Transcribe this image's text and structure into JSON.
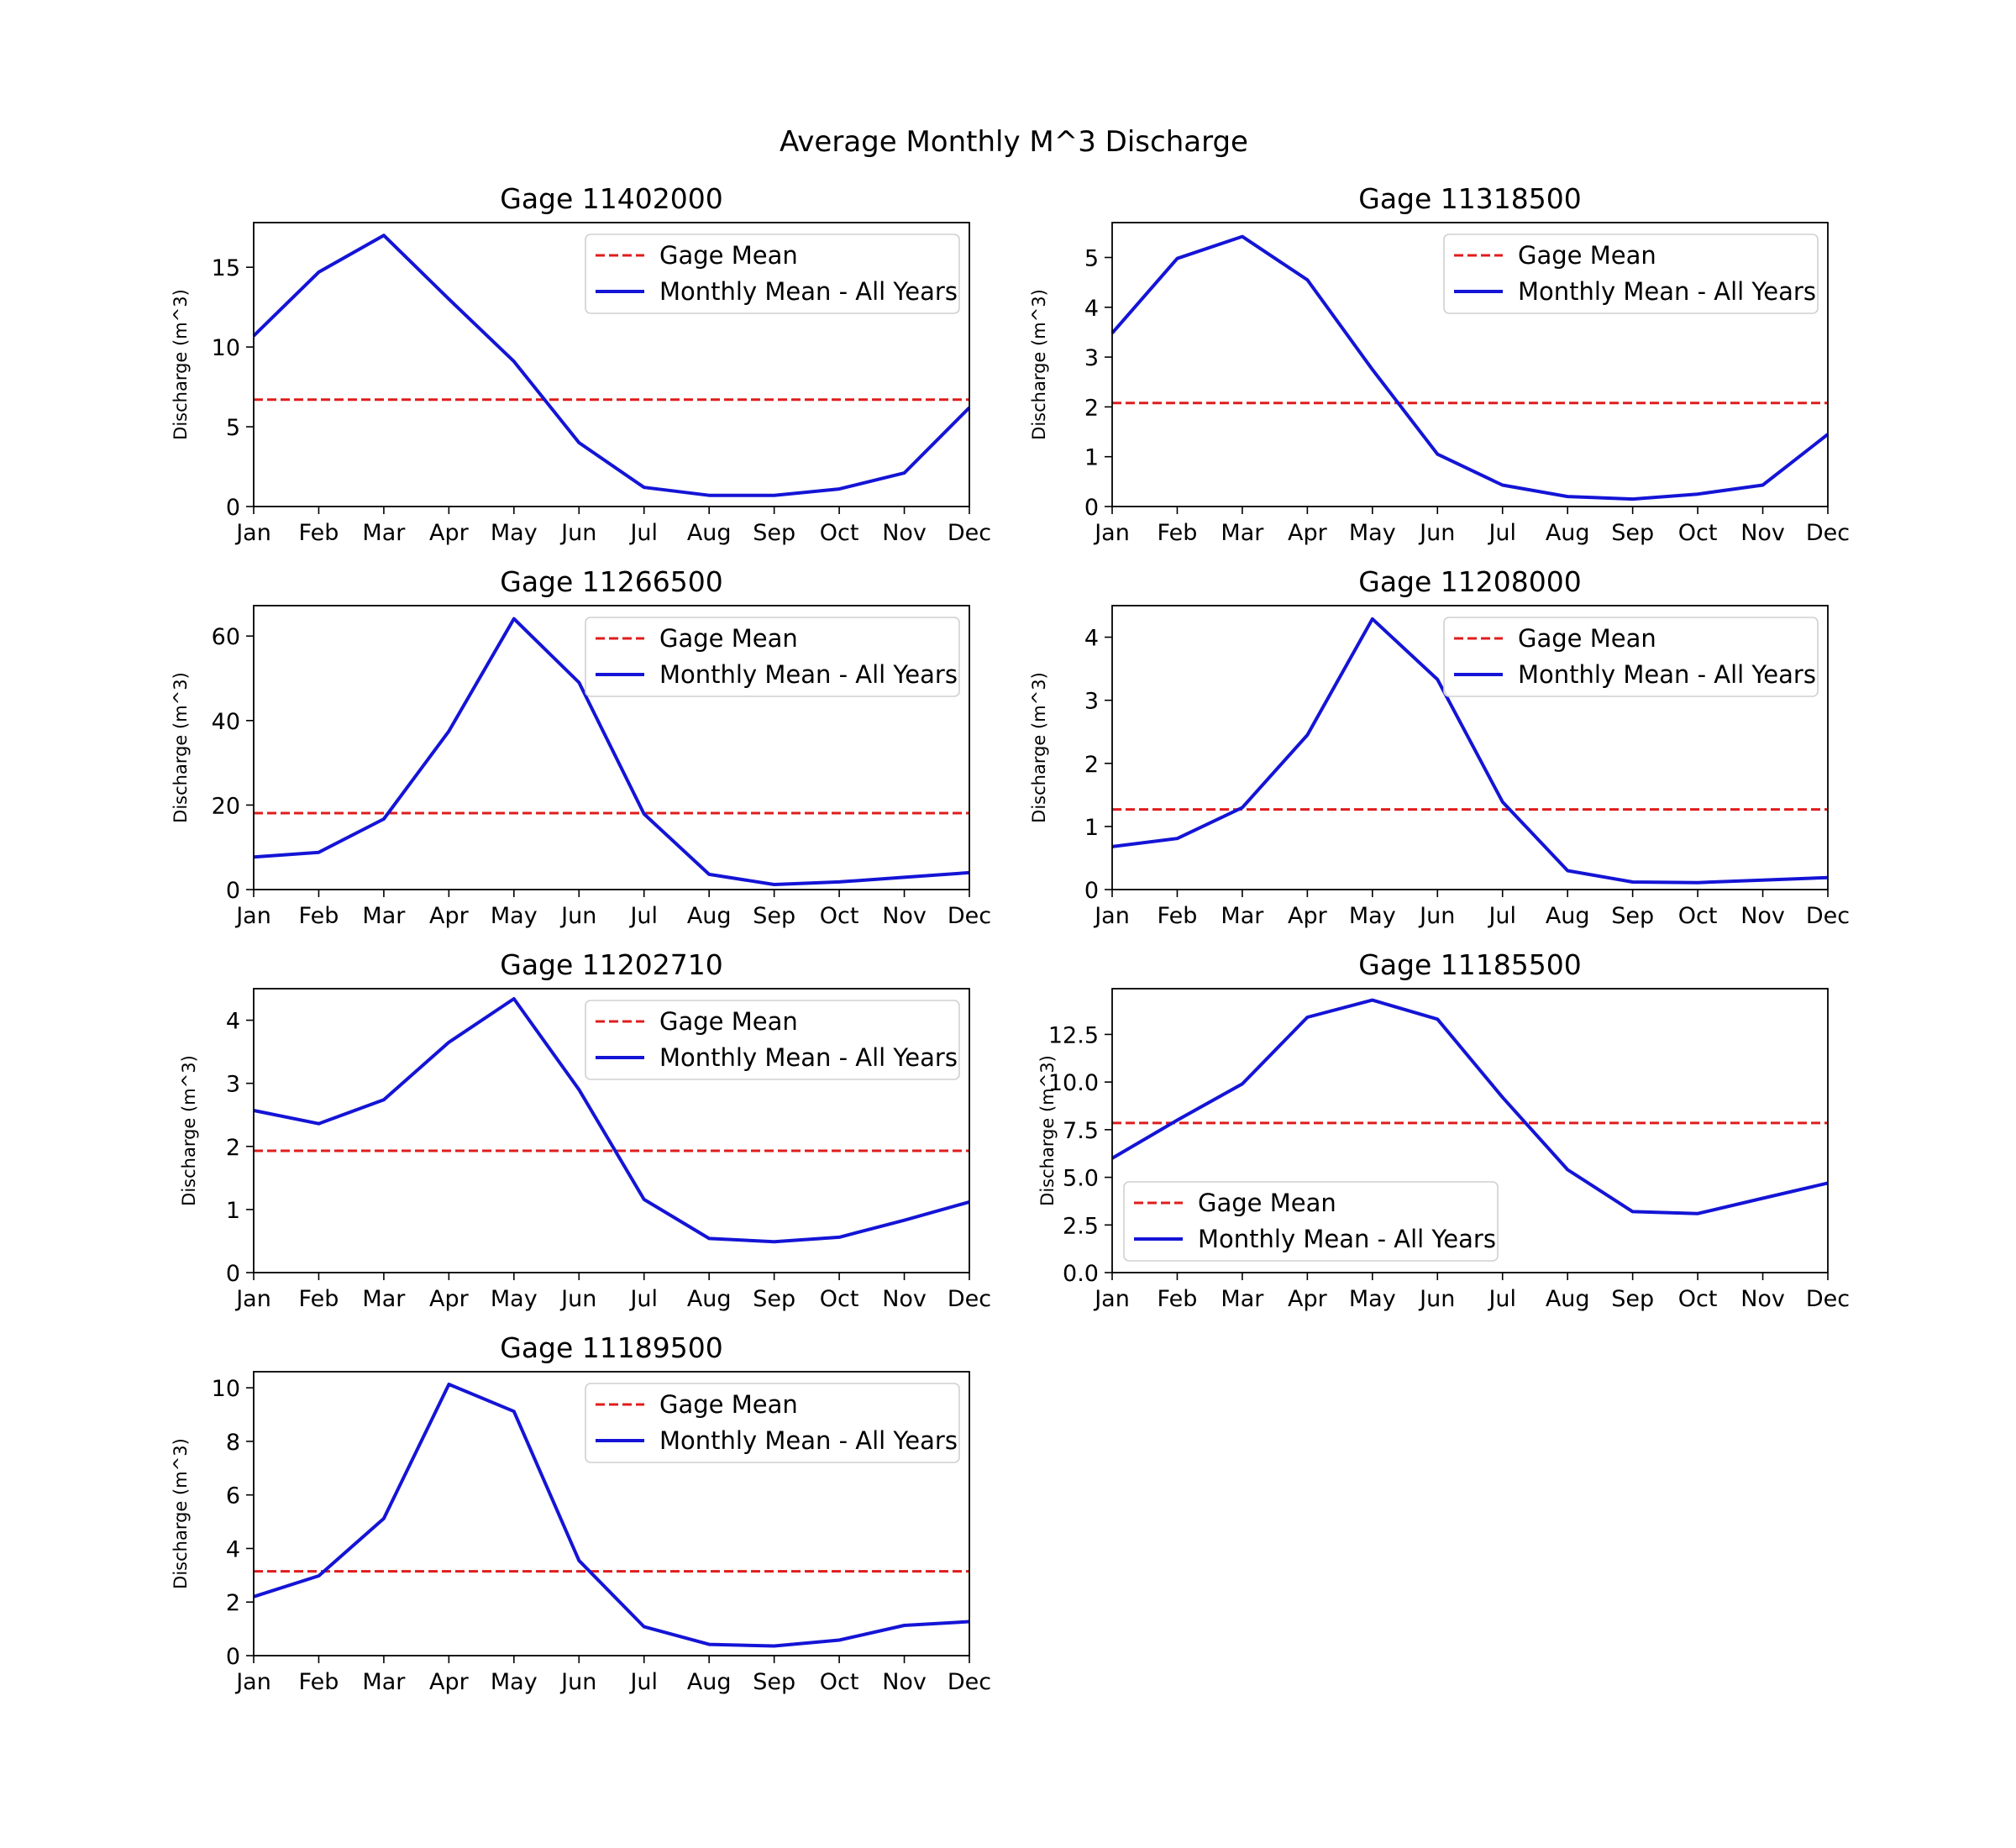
{
  "figure": {
    "title": "Average Monthly M^3 Discharge"
  },
  "chart_data": [
    {
      "type": "line",
      "title": "Gage 11402000",
      "xlabel": "",
      "ylabel": "Discharge (m^3)",
      "categories": [
        "Jan",
        "Feb",
        "Mar",
        "Apr",
        "May",
        "Jun",
        "Jul",
        "Aug",
        "Sep",
        "Oct",
        "Nov",
        "Dec"
      ],
      "ylim": [
        0,
        17.8
      ],
      "yticks": [
        0,
        5,
        10,
        15
      ],
      "ytick_labels": [
        "0",
        "5",
        "10",
        "15"
      ],
      "legend_position": "upper right",
      "series": [
        {
          "name": "Gage Mean",
          "style": "dashed",
          "color": "#e01c1c",
          "values": [
            6.7,
            6.7,
            6.7,
            6.7,
            6.7,
            6.7,
            6.7,
            6.7,
            6.7,
            6.7,
            6.7,
            6.7
          ]
        },
        {
          "name": "Monthly Mean - All Years",
          "style": "solid",
          "color": "#1414d6",
          "values": [
            10.7,
            14.7,
            17.0,
            13.0,
            9.1,
            4.0,
            1.2,
            0.7,
            0.7,
            1.1,
            2.1,
            6.2
          ]
        }
      ]
    },
    {
      "type": "line",
      "title": "Gage 11318500",
      "xlabel": "",
      "ylabel": "Discharge (m^3)",
      "categories": [
        "Jan",
        "Feb",
        "Mar",
        "Apr",
        "May",
        "Jun",
        "Jul",
        "Aug",
        "Sep",
        "Oct",
        "Nov",
        "Dec"
      ],
      "ylim": [
        0,
        5.7
      ],
      "yticks": [
        0,
        1,
        2,
        3,
        4,
        5
      ],
      "ytick_labels": [
        "0",
        "1",
        "2",
        "3",
        "4",
        "5"
      ],
      "legend_position": "upper right",
      "series": [
        {
          "name": "Gage Mean",
          "style": "dashed",
          "color": "#e01c1c",
          "values": [
            2.08,
            2.08,
            2.08,
            2.08,
            2.08,
            2.08,
            2.08,
            2.08,
            2.08,
            2.08,
            2.08,
            2.08
          ]
        },
        {
          "name": "Monthly Mean - All Years",
          "style": "solid",
          "color": "#1414d6",
          "values": [
            3.48,
            4.98,
            5.42,
            4.55,
            2.75,
            1.05,
            0.43,
            0.2,
            0.15,
            0.25,
            0.43,
            1.45
          ]
        }
      ]
    },
    {
      "type": "line",
      "title": "Gage 11266500",
      "xlabel": "",
      "ylabel": "Discharge (m^3)",
      "categories": [
        "Jan",
        "Feb",
        "Mar",
        "Apr",
        "May",
        "Jun",
        "Jul",
        "Aug",
        "Sep",
        "Oct",
        "Nov",
        "Dec"
      ],
      "ylim": [
        0,
        67.2
      ],
      "yticks": [
        0,
        20,
        40,
        60
      ],
      "ytick_labels": [
        "0",
        "20",
        "40",
        "60"
      ],
      "legend_position": "upper right",
      "series": [
        {
          "name": "Gage Mean",
          "style": "dashed",
          "color": "#e01c1c",
          "values": [
            18.1,
            18.1,
            18.1,
            18.1,
            18.1,
            18.1,
            18.1,
            18.1,
            18.1,
            18.1,
            18.1,
            18.1
          ]
        },
        {
          "name": "Monthly Mean - All Years",
          "style": "solid",
          "color": "#1414d6",
          "values": [
            7.7,
            8.8,
            16.7,
            37.5,
            64.1,
            49.0,
            17.9,
            3.6,
            1.2,
            1.8,
            2.9,
            4.0
          ]
        }
      ]
    },
    {
      "type": "line",
      "title": "Gage 11208000",
      "xlabel": "",
      "ylabel": "Discharge (m^3)",
      "categories": [
        "Jan",
        "Feb",
        "Mar",
        "Apr",
        "May",
        "Jun",
        "Jul",
        "Aug",
        "Sep",
        "Oct",
        "Nov",
        "Dec"
      ],
      "ylim": [
        0,
        4.5
      ],
      "yticks": [
        0,
        1,
        2,
        3,
        4
      ],
      "ytick_labels": [
        "0",
        "1",
        "2",
        "3",
        "4"
      ],
      "legend_position": "upper right",
      "series": [
        {
          "name": "Gage Mean",
          "style": "dashed",
          "color": "#e01c1c",
          "values": [
            1.27,
            1.27,
            1.27,
            1.27,
            1.27,
            1.27,
            1.27,
            1.27,
            1.27,
            1.27,
            1.27,
            1.27
          ]
        },
        {
          "name": "Monthly Mean - All Years",
          "style": "solid",
          "color": "#1414d6",
          "values": [
            0.68,
            0.81,
            1.3,
            2.45,
            4.29,
            3.33,
            1.39,
            0.3,
            0.12,
            0.11,
            0.15,
            0.19
          ]
        }
      ]
    },
    {
      "type": "line",
      "title": "Gage 11202710",
      "xlabel": "",
      "ylabel": "Discharge (m^3)",
      "categories": [
        "Jan",
        "Feb",
        "Mar",
        "Apr",
        "May",
        "Jun",
        "Jul",
        "Aug",
        "Sep",
        "Oct",
        "Nov",
        "Dec"
      ],
      "ylim": [
        0,
        4.5
      ],
      "yticks": [
        0,
        1,
        2,
        3,
        4
      ],
      "ytick_labels": [
        "0",
        "1",
        "2",
        "3",
        "4"
      ],
      "legend_position": "upper right",
      "series": [
        {
          "name": "Gage Mean",
          "style": "dashed",
          "color": "#e01c1c",
          "values": [
            1.93,
            1.93,
            1.93,
            1.93,
            1.93,
            1.93,
            1.93,
            1.93,
            1.93,
            1.93,
            1.93,
            1.93
          ]
        },
        {
          "name": "Monthly Mean - All Years",
          "style": "solid",
          "color": "#1414d6",
          "values": [
            2.57,
            2.36,
            2.74,
            3.65,
            4.34,
            2.9,
            1.16,
            0.54,
            0.49,
            0.56,
            0.83,
            1.12
          ]
        }
      ]
    },
    {
      "type": "line",
      "title": "Gage 11185500",
      "xlabel": "",
      "ylabel": "Discharge (m^3)",
      "categories": [
        "Jan",
        "Feb",
        "Mar",
        "Apr",
        "May",
        "Jun",
        "Jul",
        "Aug",
        "Sep",
        "Oct",
        "Nov",
        "Dec"
      ],
      "ylim": [
        0,
        14.9
      ],
      "yticks": [
        0,
        2.5,
        5,
        7.5,
        10,
        12.5
      ],
      "ytick_labels": [
        "0.0",
        "2.5",
        "5.0",
        "7.5",
        "10.0",
        "12.5"
      ],
      "legend_position": "lower left",
      "series": [
        {
          "name": "Gage Mean",
          "style": "dashed",
          "color": "#e01c1c",
          "values": [
            7.85,
            7.85,
            7.85,
            7.85,
            7.85,
            7.85,
            7.85,
            7.85,
            7.85,
            7.85,
            7.85,
            7.85
          ]
        },
        {
          "name": "Monthly Mean - All Years",
          "style": "solid",
          "color": "#1414d6",
          "values": [
            6.0,
            8.0,
            9.9,
            13.4,
            14.3,
            13.3,
            9.2,
            5.4,
            3.2,
            3.1,
            3.9,
            4.7
          ]
        }
      ]
    },
    {
      "type": "line",
      "title": "Gage 11189500",
      "xlabel": "",
      "ylabel": "Discharge (m^3)",
      "categories": [
        "Jan",
        "Feb",
        "Mar",
        "Apr",
        "May",
        "Jun",
        "Jul",
        "Aug",
        "Sep",
        "Oct",
        "Nov",
        "Dec"
      ],
      "ylim": [
        0,
        10.6
      ],
      "yticks": [
        0,
        2,
        4,
        6,
        8,
        10
      ],
      "ytick_labels": [
        "0",
        "2",
        "4",
        "6",
        "8",
        "10"
      ],
      "legend_position": "upper right",
      "series": [
        {
          "name": "Gage Mean",
          "style": "dashed",
          "color": "#e01c1c",
          "values": [
            3.15,
            3.15,
            3.15,
            3.15,
            3.15,
            3.15,
            3.15,
            3.15,
            3.15,
            3.15,
            3.15,
            3.15
          ]
        },
        {
          "name": "Monthly Mean - All Years",
          "style": "solid",
          "color": "#1414d6",
          "values": [
            2.2,
            2.98,
            5.12,
            10.13,
            9.12,
            3.55,
            1.08,
            0.42,
            0.36,
            0.58,
            1.13,
            1.27
          ]
        }
      ]
    }
  ]
}
